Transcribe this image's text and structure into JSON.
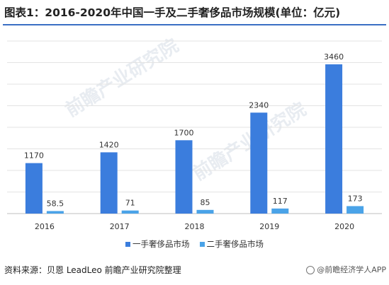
{
  "page": {
    "title": "图表1：2016-2020年中国一手及二手奢侈品市场规模(单位：亿元)",
    "source": "资料来源：贝恩 LeadLeo 前瞻产业研究院整理",
    "watermark": "前瞻产业研究院",
    "badge": "@前瞻经济学人APP"
  },
  "colors": {
    "primary": "#3b7ddd",
    "secondary": "#4aa3e8",
    "divider": "#3a6fc4"
  },
  "chart_data": {
    "type": "bar",
    "categories": [
      "2016",
      "2017",
      "2018",
      "2019",
      "2020"
    ],
    "series": [
      {
        "name": "一手奢侈品市场",
        "values": [
          1170,
          1420,
          1700,
          2340,
          3460
        ],
        "labels": [
          "1170",
          "1420",
          "1700",
          "2340",
          "3460"
        ]
      },
      {
        "name": "二手奢侈品市场",
        "values": [
          58.5,
          71,
          85,
          117,
          173
        ],
        "labels": [
          "58.5",
          "71",
          "85",
          "117",
          "173"
        ]
      }
    ],
    "ylim": [
      0,
      4000
    ],
    "grid": true,
    "legend_position": "bottom"
  }
}
